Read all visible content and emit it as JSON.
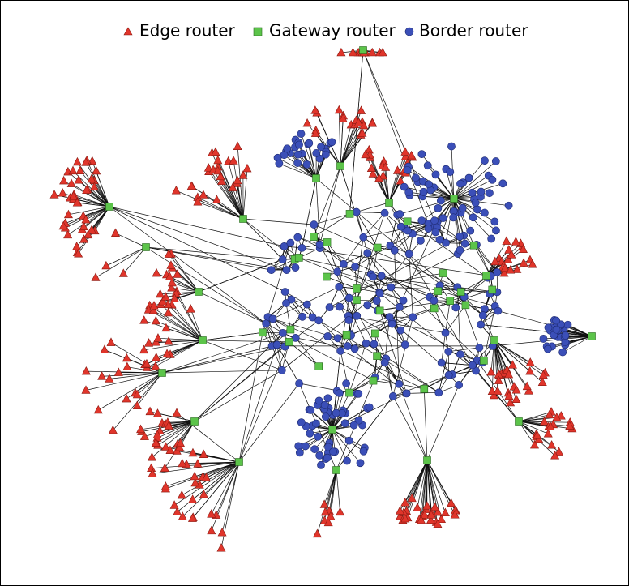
{
  "legend": {
    "items": [
      {
        "label": "Edge router"
      },
      {
        "label": "Gateway router"
      },
      {
        "label": "Border router"
      }
    ]
  }
}
